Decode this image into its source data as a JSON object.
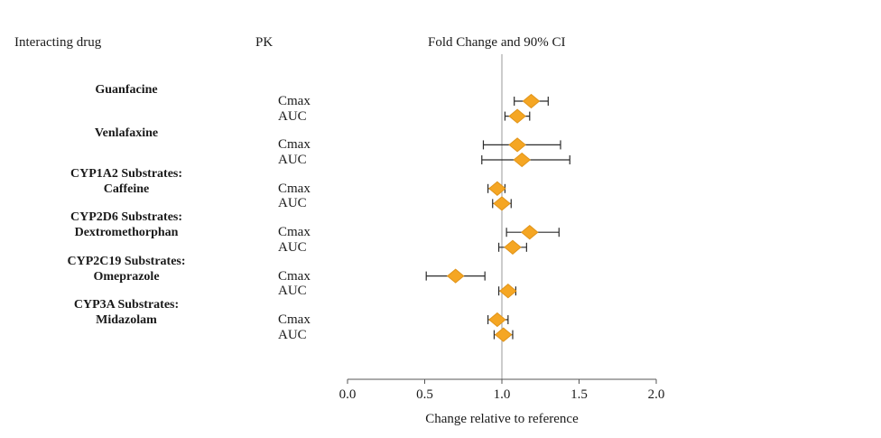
{
  "header": {
    "col_interacting_drug": "Interacting drug",
    "col_pk": "PK",
    "col_fold_change": "Fold Change and 90% CI"
  },
  "axis": {
    "ticks": [
      {
        "label": "0.0",
        "value": 0.0
      },
      {
        "label": "0.5",
        "value": 0.5
      },
      {
        "label": "1.0",
        "value": 1.0
      },
      {
        "label": "1.5",
        "value": 1.5
      },
      {
        "label": "2.0",
        "value": 2.0
      }
    ]
  },
  "colors": {
    "marker": "#F5A623",
    "marker_edge": "#E0941A",
    "ci": "#2b2b2b",
    "axis": "#555555",
    "ref_line": "#9a9a9a"
  },
  "chart_data": {
    "type": "forest",
    "title": "Fold Change and 90% CI",
    "xlabel": "Change relative to reference",
    "xlim": [
      0.0,
      2.0
    ],
    "ref_line": 1.0,
    "ci_level": "90% CI",
    "groups": [
      {
        "label_lines": [
          "Guanfacine"
        ],
        "rows": [
          {
            "pk": "Cmax",
            "estimate": 1.19,
            "ci_low": 1.08,
            "ci_high": 1.3
          },
          {
            "pk": "AUC",
            "estimate": 1.1,
            "ci_low": 1.02,
            "ci_high": 1.18
          }
        ]
      },
      {
        "label_lines": [
          "Venlafaxine"
        ],
        "rows": [
          {
            "pk": "Cmax",
            "estimate": 1.1,
            "ci_low": 0.88,
            "ci_high": 1.38
          },
          {
            "pk": "AUC",
            "estimate": 1.13,
            "ci_low": 0.87,
            "ci_high": 1.44
          }
        ]
      },
      {
        "label_lines": [
          "CYP1A2 Substrates:",
          "Caffeine"
        ],
        "rows": [
          {
            "pk": "Cmax",
            "estimate": 0.97,
            "ci_low": 0.91,
            "ci_high": 1.02
          },
          {
            "pk": "AUC",
            "estimate": 1.0,
            "ci_low": 0.94,
            "ci_high": 1.06
          }
        ]
      },
      {
        "label_lines": [
          "CYP2D6 Substrates:",
          "Dextromethorphan"
        ],
        "rows": [
          {
            "pk": "Cmax",
            "estimate": 1.18,
            "ci_low": 1.03,
            "ci_high": 1.37
          },
          {
            "pk": "AUC",
            "estimate": 1.07,
            "ci_low": 0.98,
            "ci_high": 1.16
          }
        ]
      },
      {
        "label_lines": [
          "CYP2C19 Substrates:",
          "Omeprazole"
        ],
        "rows": [
          {
            "pk": "Cmax",
            "estimate": 0.7,
            "ci_low": 0.51,
            "ci_high": 0.89
          },
          {
            "pk": "AUC",
            "estimate": 1.04,
            "ci_low": 0.98,
            "ci_high": 1.09
          }
        ]
      },
      {
        "label_lines": [
          "CYP3A Substrates:",
          "Midazolam"
        ],
        "rows": [
          {
            "pk": "Cmax",
            "estimate": 0.97,
            "ci_low": 0.91,
            "ci_high": 1.04
          },
          {
            "pk": "AUC",
            "estimate": 1.01,
            "ci_low": 0.95,
            "ci_high": 1.07
          }
        ]
      }
    ]
  }
}
